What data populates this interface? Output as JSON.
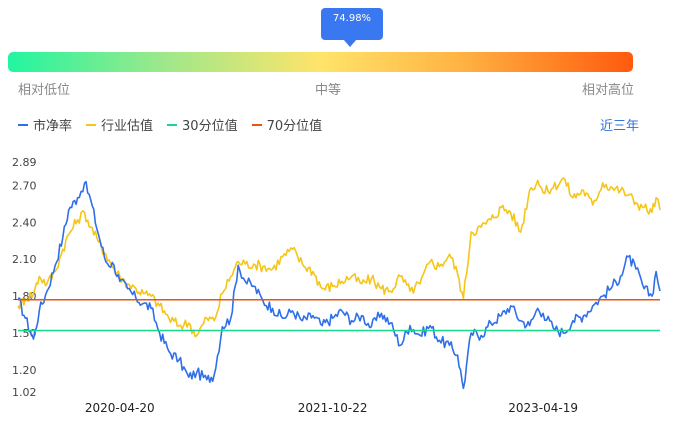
{
  "gauge": {
    "tooltip": "74.98%",
    "percentile": 74.98,
    "left_label": "相对低位",
    "mid_label": "中等",
    "right_label": "相对高位"
  },
  "legend": [
    {
      "label": "市净率",
      "color": "#2f6fea"
    },
    {
      "label": "行业估值",
      "color": "#f5c518"
    },
    {
      "label": "30分位值",
      "color": "#17d98b"
    },
    {
      "label": "70分位值",
      "color": "#e8550e"
    }
  ],
  "period_selector": "近三年",
  "chart_data": {
    "type": "line",
    "y_ticks": [
      "2.89",
      "2.70",
      "2.40",
      "2.10",
      "1.80",
      "1.50",
      "1.20",
      "1.02"
    ],
    "x_ticks": [
      "2020-04-20",
      "2021-10-22",
      "2023-04-19"
    ],
    "ylim": [
      1.02,
      2.89
    ],
    "xlim": [
      "2019-08-01",
      "2024-02-15"
    ],
    "reference_lines": [
      {
        "name": "30分位值",
        "value": 1.52,
        "color": "#17d98b"
      },
      {
        "name": "70分位值",
        "value": 1.77,
        "color": "#e8550e"
      }
    ],
    "series": [
      {
        "name": "市净率",
        "color": "#2f6fea",
        "points": [
          [
            "2019-08-01",
            1.78
          ],
          [
            "2019-08-20",
            1.62
          ],
          [
            "2019-09-10",
            1.45
          ],
          [
            "2019-09-25",
            1.68
          ],
          [
            "2019-10-15",
            1.84
          ],
          [
            "2019-11-05",
            2.05
          ],
          [
            "2019-11-25",
            2.28
          ],
          [
            "2019-12-10",
            2.5
          ],
          [
            "2020-01-02",
            2.6
          ],
          [
            "2020-01-20",
            2.72
          ],
          [
            "2020-02-05",
            2.58
          ],
          [
            "2020-02-25",
            2.3
          ],
          [
            "2020-03-15",
            2.08
          ],
          [
            "2020-04-05",
            2.05
          ],
          [
            "2020-04-20",
            1.92
          ],
          [
            "2020-05-10",
            1.86
          ],
          [
            "2020-06-01",
            1.78
          ],
          [
            "2020-06-20",
            1.74
          ],
          [
            "2020-07-10",
            1.7
          ],
          [
            "2020-08-01",
            1.5
          ],
          [
            "2020-08-25",
            1.35
          ],
          [
            "2020-09-20",
            1.28
          ],
          [
            "2020-10-15",
            1.14
          ],
          [
            "2020-11-05",
            1.18
          ],
          [
            "2020-12-01",
            1.12
          ],
          [
            "2020-12-20",
            1.16
          ],
          [
            "2021-01-10",
            1.55
          ],
          [
            "2021-02-01",
            1.62
          ],
          [
            "2021-02-20",
            2.05
          ],
          [
            "2021-03-10",
            1.92
          ],
          [
            "2021-04-01",
            1.88
          ],
          [
            "2021-04-25",
            1.76
          ],
          [
            "2021-05-20",
            1.7
          ],
          [
            "2021-06-15",
            1.62
          ],
          [
            "2021-07-10",
            1.68
          ],
          [
            "2021-08-05",
            1.6
          ],
          [
            "2021-09-01",
            1.64
          ],
          [
            "2021-09-25",
            1.56
          ],
          [
            "2021-10-22",
            1.62
          ],
          [
            "2021-11-15",
            1.68
          ],
          [
            "2021-12-10",
            1.6
          ],
          [
            "2022-01-05",
            1.64
          ],
          [
            "2022-01-30",
            1.55
          ],
          [
            "2022-02-25",
            1.66
          ],
          [
            "2022-03-20",
            1.58
          ],
          [
            "2022-04-15",
            1.4
          ],
          [
            "2022-05-10",
            1.56
          ],
          [
            "2022-06-05",
            1.48
          ],
          [
            "2022-07-01",
            1.56
          ],
          [
            "2022-07-25",
            1.44
          ],
          [
            "2022-08-20",
            1.4
          ],
          [
            "2022-09-10",
            1.32
          ],
          [
            "2022-09-25",
            1.05
          ],
          [
            "2022-10-15",
            1.5
          ],
          [
            "2022-11-10",
            1.48
          ],
          [
            "2022-12-05",
            1.58
          ],
          [
            "2023-01-01",
            1.64
          ],
          [
            "2023-01-25",
            1.72
          ],
          [
            "2023-02-20",
            1.6
          ],
          [
            "2023-03-15",
            1.56
          ],
          [
            "2023-04-05",
            1.7
          ],
          [
            "2023-04-19",
            1.66
          ],
          [
            "2023-05-15",
            1.54
          ],
          [
            "2023-06-10",
            1.5
          ],
          [
            "2023-07-05",
            1.6
          ],
          [
            "2023-08-01",
            1.64
          ],
          [
            "2023-08-25",
            1.72
          ],
          [
            "2023-09-20",
            1.8
          ],
          [
            "2023-10-15",
            1.88
          ],
          [
            "2023-11-05",
            1.96
          ],
          [
            "2023-11-25",
            2.12
          ],
          [
            "2023-12-15",
            2.02
          ],
          [
            "2024-01-05",
            1.86
          ],
          [
            "2024-01-25",
            1.8
          ],
          [
            "2024-02-05",
            2.0
          ],
          [
            "2024-02-15",
            1.84
          ]
        ]
      },
      {
        "name": "行业估值",
        "color": "#f5c518",
        "points": [
          [
            "2019-08-01",
            1.72
          ],
          [
            "2019-08-20",
            1.78
          ],
          [
            "2019-09-10",
            1.82
          ],
          [
            "2019-09-25",
            1.96
          ],
          [
            "2019-10-15",
            1.9
          ],
          [
            "2019-11-05",
            2.0
          ],
          [
            "2019-11-25",
            2.18
          ],
          [
            "2019-12-10",
            2.3
          ],
          [
            "2020-01-02",
            2.42
          ],
          [
            "2020-01-20",
            2.48
          ],
          [
            "2020-02-05",
            2.36
          ],
          [
            "2020-02-25",
            2.24
          ],
          [
            "2020-03-15",
            2.14
          ],
          [
            "2020-04-05",
            2.02
          ],
          [
            "2020-04-20",
            1.96
          ],
          [
            "2020-05-10",
            1.9
          ],
          [
            "2020-06-01",
            1.86
          ],
          [
            "2020-06-20",
            1.82
          ],
          [
            "2020-07-10",
            1.8
          ],
          [
            "2020-08-01",
            1.72
          ],
          [
            "2020-08-25",
            1.62
          ],
          [
            "2020-09-20",
            1.56
          ],
          [
            "2020-10-15",
            1.58
          ],
          [
            "2020-11-05",
            1.48
          ],
          [
            "2020-12-01",
            1.62
          ],
          [
            "2020-12-20",
            1.6
          ],
          [
            "2021-01-10",
            1.82
          ],
          [
            "2021-02-01",
            1.96
          ],
          [
            "2021-02-20",
            2.08
          ],
          [
            "2021-03-10",
            2.06
          ],
          [
            "2021-04-01",
            2.06
          ],
          [
            "2021-04-25",
            2.04
          ],
          [
            "2021-05-20",
            2.02
          ],
          [
            "2021-06-15",
            2.12
          ],
          [
            "2021-07-10",
            2.18
          ],
          [
            "2021-08-05",
            2.06
          ],
          [
            "2021-09-01",
            2.0
          ],
          [
            "2021-09-25",
            1.86
          ],
          [
            "2021-10-22",
            1.88
          ],
          [
            "2021-11-15",
            1.92
          ],
          [
            "2021-12-10",
            1.96
          ],
          [
            "2022-01-05",
            1.9
          ],
          [
            "2022-01-30",
            1.94
          ],
          [
            "2022-02-25",
            1.86
          ],
          [
            "2022-03-20",
            1.84
          ],
          [
            "2022-04-15",
            1.96
          ],
          [
            "2022-05-10",
            1.84
          ],
          [
            "2022-06-05",
            1.9
          ],
          [
            "2022-07-01",
            2.08
          ],
          [
            "2022-07-25",
            2.04
          ],
          [
            "2022-08-20",
            2.14
          ],
          [
            "2022-09-10",
            1.98
          ],
          [
            "2022-09-25",
            1.78
          ],
          [
            "2022-10-15",
            2.32
          ],
          [
            "2022-11-10",
            2.36
          ],
          [
            "2022-12-05",
            2.42
          ],
          [
            "2023-01-01",
            2.52
          ],
          [
            "2023-01-25",
            2.48
          ],
          [
            "2023-02-20",
            2.32
          ],
          [
            "2023-03-15",
            2.66
          ],
          [
            "2023-04-05",
            2.74
          ],
          [
            "2023-04-19",
            2.64
          ],
          [
            "2023-05-15",
            2.68
          ],
          [
            "2023-06-10",
            2.76
          ],
          [
            "2023-07-05",
            2.6
          ],
          [
            "2023-08-01",
            2.66
          ],
          [
            "2023-08-25",
            2.54
          ],
          [
            "2023-09-20",
            2.72
          ],
          [
            "2023-10-15",
            2.68
          ],
          [
            "2023-11-05",
            2.66
          ],
          [
            "2023-11-25",
            2.62
          ],
          [
            "2023-12-15",
            2.56
          ],
          [
            "2024-01-05",
            2.52
          ],
          [
            "2024-01-25",
            2.48
          ],
          [
            "2024-02-05",
            2.6
          ],
          [
            "2024-02-15",
            2.5
          ]
        ]
      }
    ]
  }
}
